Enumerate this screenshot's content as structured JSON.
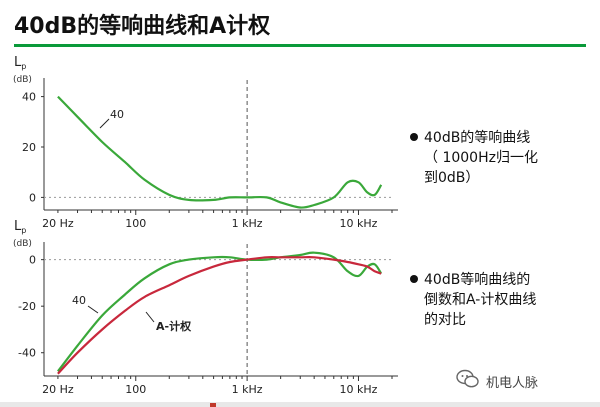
{
  "slide": {
    "title": "40dB的等响曲线和A计权"
  },
  "bullets": [
    {
      "lines": [
        "40dB的等响曲线",
        "（ 1000Hz归一化",
        "到0dB）"
      ]
    },
    {
      "lines": [
        "40dB等响曲线的",
        "倒数和A-计权曲线",
        "的对比"
      ]
    }
  ],
  "watermark": {
    "text": "机电人脉"
  },
  "colors": {
    "green": "#3aa83a",
    "red": "#c8283c",
    "accent_rule": "#0a9a3a"
  },
  "chart_data": [
    {
      "type": "line",
      "ylabel": "Lp",
      "yunit": "(dB)",
      "xscale": "log",
      "xlim": [
        15,
        20000
      ],
      "ylim": [
        -5,
        45
      ],
      "yticks": [
        40,
        20,
        0
      ],
      "xticks": [
        {
          "value": 20,
          "label": "20 Hz"
        },
        {
          "value": 100,
          "label": "100"
        },
        {
          "value": 1000,
          "label": "1 kHz"
        },
        {
          "value": 10000,
          "label": "10 kHz"
        }
      ],
      "reference_lines": [
        {
          "axis": "x",
          "value": 1000
        },
        {
          "axis": "y",
          "value": 0
        }
      ],
      "series": [
        {
          "name": "40",
          "color": "#3aa83a",
          "x": [
            20,
            30,
            50,
            80,
            120,
            200,
            300,
            500,
            700,
            1000,
            1500,
            2000,
            3000,
            4000,
            6000,
            8000,
            10000,
            12000,
            14000,
            16000
          ],
          "y": [
            40,
            32,
            22,
            14,
            7,
            1,
            -1,
            -1,
            0,
            0,
            0,
            -2,
            -4,
            -3,
            0,
            6,
            6,
            2,
            1,
            5
          ]
        }
      ]
    },
    {
      "type": "line",
      "ylabel": "Lp",
      "yunit": "(dB)",
      "xscale": "log",
      "xlim": [
        15,
        20000
      ],
      "ylim": [
        -50,
        5
      ],
      "yticks": [
        0,
        -20,
        -40
      ],
      "xticks": [
        {
          "value": 20,
          "label": "20 Hz"
        },
        {
          "value": 100,
          "label": "100"
        },
        {
          "value": 1000,
          "label": "1 kHz"
        },
        {
          "value": 10000,
          "label": "10 kHz"
        }
      ],
      "reference_lines": [
        {
          "axis": "x",
          "value": 1000
        },
        {
          "axis": "y",
          "value": 0
        }
      ],
      "series": [
        {
          "name": "40",
          "color": "#3aa83a",
          "x": [
            20,
            30,
            50,
            80,
            120,
            200,
            300,
            500,
            700,
            1000,
            1500,
            2000,
            3000,
            4000,
            6000,
            8000,
            10000,
            12000,
            14000,
            16000
          ],
          "y": [
            -48,
            -37,
            -24,
            -15,
            -8,
            -2,
            0,
            1,
            1,
            0,
            0,
            1,
            2,
            3,
            1,
            -5,
            -7,
            -3,
            -2,
            -6
          ]
        },
        {
          "name": "A-计权",
          "color": "#c8283c",
          "x": [
            20,
            30,
            50,
            80,
            120,
            200,
            300,
            500,
            700,
            1000,
            1500,
            2000,
            3000,
            4000,
            6000,
            8000,
            10000,
            12000,
            14000,
            16000
          ],
          "y": [
            -49,
            -40,
            -30,
            -22,
            -16,
            -11,
            -7,
            -3,
            -1,
            0,
            1,
            1,
            1,
            1,
            0,
            -1,
            -2,
            -3,
            -5,
            -6
          ]
        }
      ]
    }
  ]
}
